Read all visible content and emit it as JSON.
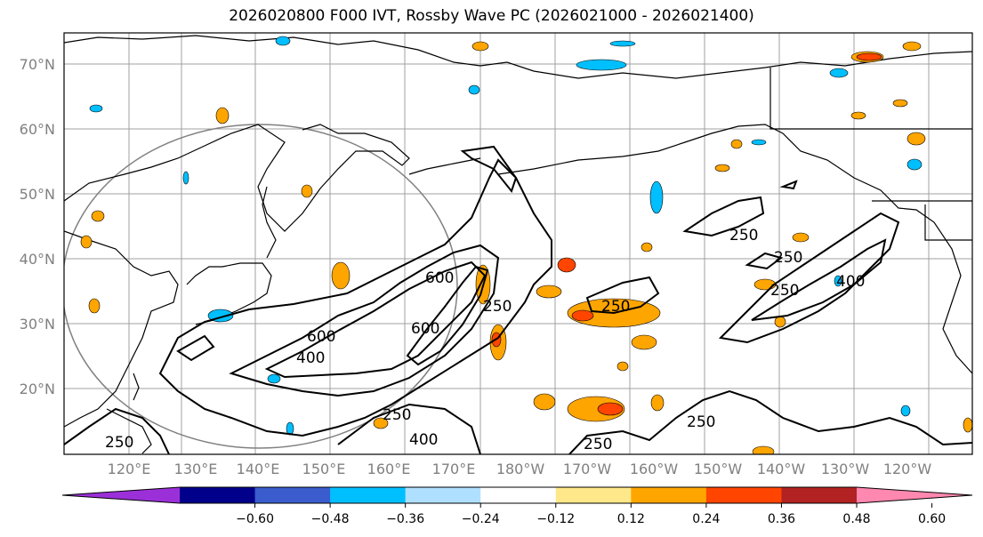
{
  "title": "2026020800 F000 IVT, Rossby Wave PC (2026021000 - 2026021400)",
  "lat_labels": [
    "70°N",
    "60°N",
    "50°N",
    "40°N",
    "30°N",
    "20°N"
  ],
  "lon_labels": [
    "120°E",
    "130°E",
    "140°E",
    "150°E",
    "160°E",
    "170°E",
    "180°W",
    "170°W",
    "160°W",
    "150°W",
    "140°W",
    "130°W",
    "120°W"
  ],
  "colorbar": {
    "ticks": [
      "−0.60",
      "−0.48",
      "−0.36",
      "−0.24",
      "−0.12",
      "0.12",
      "0.24",
      "0.36",
      "0.48",
      "0.60"
    ],
    "colors": [
      "#9b30d9",
      "#00008b",
      "#3a5ccc",
      "#00bfff",
      "#b0e0ff",
      "#ffffff",
      "#ffe88a",
      "#ffa500",
      "#ff4500",
      "#b22222",
      "#ff88b0"
    ]
  },
  "contour_labels": [
    "600",
    "400",
    "600",
    "600",
    "250",
    "250",
    "250",
    "250",
    "250",
    "250",
    "400",
    "250",
    "400",
    "250",
    "250"
  ],
  "colors": {
    "land_line": "#000000",
    "grid": "#a0a0a0",
    "orange": "#ffa500",
    "yellow": "#ffe88a",
    "red": "#ff4500",
    "blue": "#00bfff"
  }
}
